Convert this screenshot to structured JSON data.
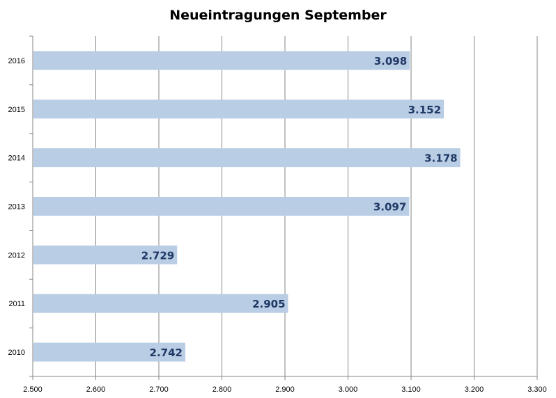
{
  "chart_data": {
    "type": "bar",
    "orientation": "horizontal",
    "title": "Neueintragungen September",
    "xlabel": "",
    "ylabel": "",
    "categories": [
      "2010",
      "2011",
      "2012",
      "2013",
      "2014",
      "2015",
      "2016"
    ],
    "values": [
      2742,
      2905,
      2729,
      3097,
      3178,
      3152,
      3098
    ],
    "value_labels": [
      "2.742",
      "2.905",
      "2.729",
      "3.097",
      "3.178",
      "3.152",
      "3.098"
    ],
    "xlim": [
      2500,
      3300
    ],
    "xticks": [
      2500,
      2600,
      2700,
      2800,
      2900,
      3000,
      3100,
      3200,
      3300
    ],
    "xtick_labels": [
      "2.500",
      "2.600",
      "2.700",
      "2.800",
      "2.900",
      "3.000",
      "3.100",
      "3.200",
      "3.300"
    ],
    "grid": "vertical",
    "legend": "none",
    "colors": {
      "bar": "#b9cde5",
      "label": "#1f3864",
      "grid": "#868686",
      "axis": "#868686"
    }
  }
}
